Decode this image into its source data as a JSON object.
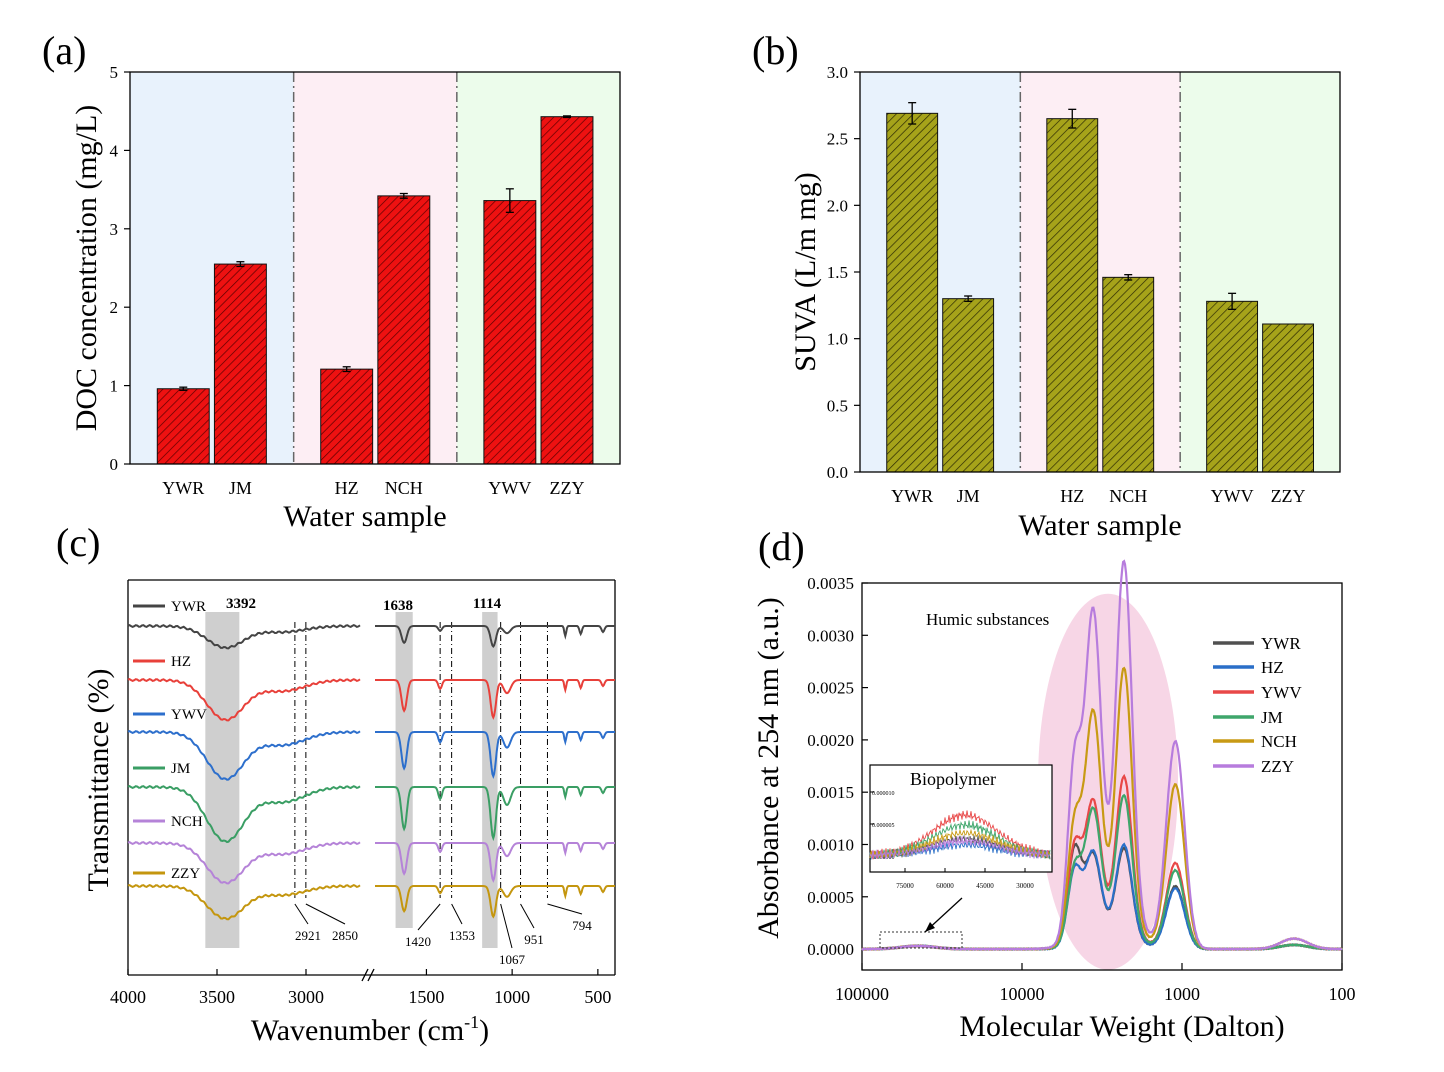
{
  "colors": {
    "doc_bar": "#ee1111",
    "suva_bar": "#a6a31a",
    "bg_blue": "#e8f2fc",
    "bg_pink": "#fdeef4",
    "bg_green": "#ecfceb",
    "ftir": {
      "YWR": "#444444",
      "HZ": "#e8403a",
      "YWV": "#2d6fcc",
      "JM": "#3a9e64",
      "NCH": "#b583d8",
      "ZZY": "#c4960e"
    },
    "hpsec": {
      "YWR": "#505050",
      "HZ": "#2a6fc8",
      "YWV": "#e84848",
      "JM": "#3fa66b",
      "NCH": "#c89a14",
      "ZZY": "#b77cdd"
    }
  },
  "chart_data": [
    {
      "panel": "(a)",
      "type": "bar",
      "categories": [
        "YWR",
        "JM",
        "HZ",
        "NCH",
        "YWV",
        "ZZY"
      ],
      "values": [
        0.96,
        2.55,
        1.21,
        3.42,
        3.36,
        4.43
      ],
      "errors": [
        0.02,
        0.03,
        0.03,
        0.03,
        0.15,
        0.01
      ],
      "xlabel": "Water sample",
      "ylabel": "DOC concentration (mg/L)",
      "ylim": [
        0,
        5
      ],
      "yticks": [
        "0",
        "1",
        "2",
        "3",
        "4",
        "5"
      ],
      "groups": 3
    },
    {
      "panel": "(b)",
      "type": "bar",
      "categories": [
        "YWR",
        "JM",
        "HZ",
        "NCH",
        "YWV",
        "ZZY"
      ],
      "values": [
        2.69,
        1.3,
        2.65,
        1.46,
        1.28,
        1.11
      ],
      "errors": [
        0.08,
        0.02,
        0.07,
        0.02,
        0.06,
        0.0
      ],
      "xlabel": "Water sample",
      "ylabel": "SUVA (L/m mg)",
      "ylim": [
        0,
        3.0
      ],
      "yticks": [
        "0.0",
        "0.5",
        "1.0",
        "1.5",
        "2.0",
        "2.5",
        "3.0"
      ],
      "groups": 3
    },
    {
      "panel": "(c)",
      "type": "line",
      "xlabel_main": "Wavenumber (cm",
      "xlabel_sup": "-1",
      "xlabel_end": ")",
      "ylabel": "Transmittance (%)",
      "xticks": [
        "4000",
        "3500",
        "3000",
        "2500",
        "2000",
        "1500",
        "1000",
        "500"
      ],
      "series": [
        {
          "name": "YWR",
          "depth": 0.6
        },
        {
          "name": "HZ",
          "depth": 1.1
        },
        {
          "name": "YWV",
          "depth": 1.3
        },
        {
          "name": "JM",
          "depth": 1.5
        },
        {
          "name": "NCH",
          "depth": 1.1
        },
        {
          "name": "ZZY",
          "depth": 0.9
        }
      ],
      "shaded_bands": [
        "3392",
        "1638",
        "1114"
      ],
      "marked_peaks": [
        "2921",
        "2850",
        "1420",
        "1353",
        "1067",
        "951",
        "794"
      ]
    },
    {
      "panel": "(d)",
      "type": "line",
      "xlabel": "Molecular Weight (Dalton)",
      "ylabel": "Absorbance at 254 nm (a.u.)",
      "xscale": "log",
      "xlim": [
        100000,
        100
      ],
      "xticks": [
        "100000",
        "10000",
        "1000",
        "100"
      ],
      "ylim": [
        -0.0002,
        0.0035
      ],
      "yticks": [
        "0.0000",
        "0.0005",
        "0.0010",
        "0.0015",
        "0.0020",
        "0.0025",
        "0.0030",
        "0.0035"
      ],
      "annotation": "Humic substances",
      "inset": {
        "title": "Biopolymer",
        "xticks": [
          "75000",
          "60000",
          "45000",
          "30000"
        ],
        "yticks": [
          "0.000010",
          "0.000005",
          "0.000000"
        ]
      },
      "peaks_mw": [
        4700,
        3600,
        2300,
        1100
      ],
      "series": [
        {
          "name": "YWR",
          "peaks": [
            0.0009,
            0.0008,
            0.00085,
            0.0006
          ]
        },
        {
          "name": "HZ",
          "peaks": [
            0.0007,
            0.00082,
            0.00088,
            0.00058
          ]
        },
        {
          "name": "YWV",
          "peaks": [
            0.0009,
            0.00125,
            0.00147,
            0.00082
          ]
        },
        {
          "name": "JM",
          "peaks": [
            0.0007,
            0.00118,
            0.0013,
            0.00075
          ]
        },
        {
          "name": "NCH",
          "peaks": [
            0.00108,
            0.002,
            0.0024,
            0.00157
          ]
        },
        {
          "name": "ZZY",
          "peaks": [
            0.00162,
            0.00285,
            0.0033,
            0.00198
          ]
        }
      ]
    }
  ]
}
